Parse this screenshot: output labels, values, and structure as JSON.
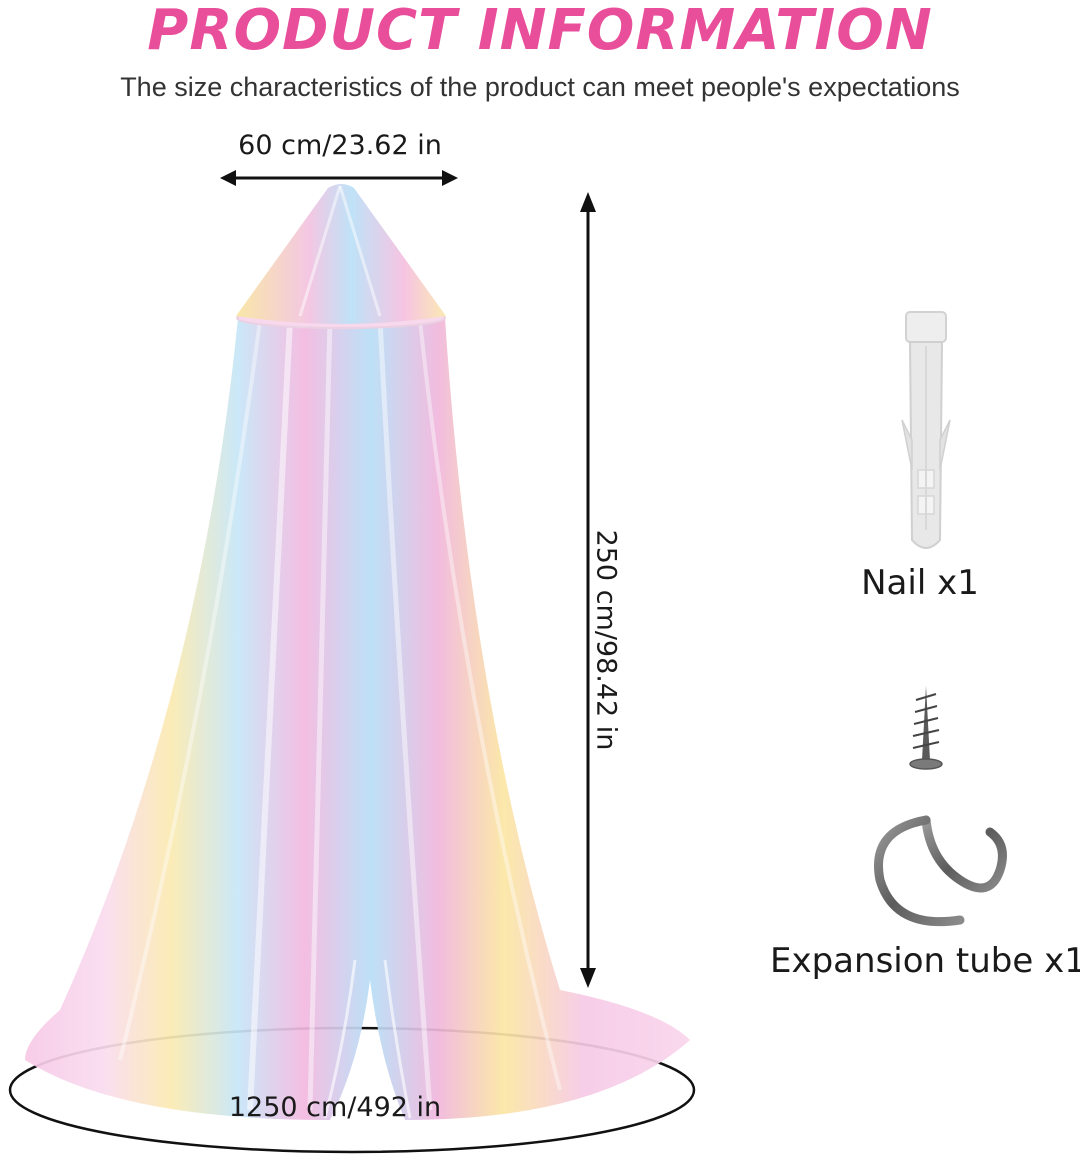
{
  "header": {
    "title": "PRODUCT INFORMATION",
    "subtitle": "The size characteristics of the product can meet people's expectations"
  },
  "dimensions": {
    "top_width": "60 cm/23.62 in",
    "height": "250 cm/98.42 in",
    "bottom_diameter": "1250 cm/492 in"
  },
  "parts": {
    "nail_label": "Nail x1",
    "tube_label": "Expansion tube x1"
  },
  "colors": {
    "title": "#e94e9a",
    "canopy": [
      "#f7c6e4",
      "#fbe9a8",
      "#b9e0f5",
      "#f2b8e0",
      "#d9c6f2"
    ],
    "hook": "#6f6f6f",
    "nail": "#e6e6e6"
  }
}
